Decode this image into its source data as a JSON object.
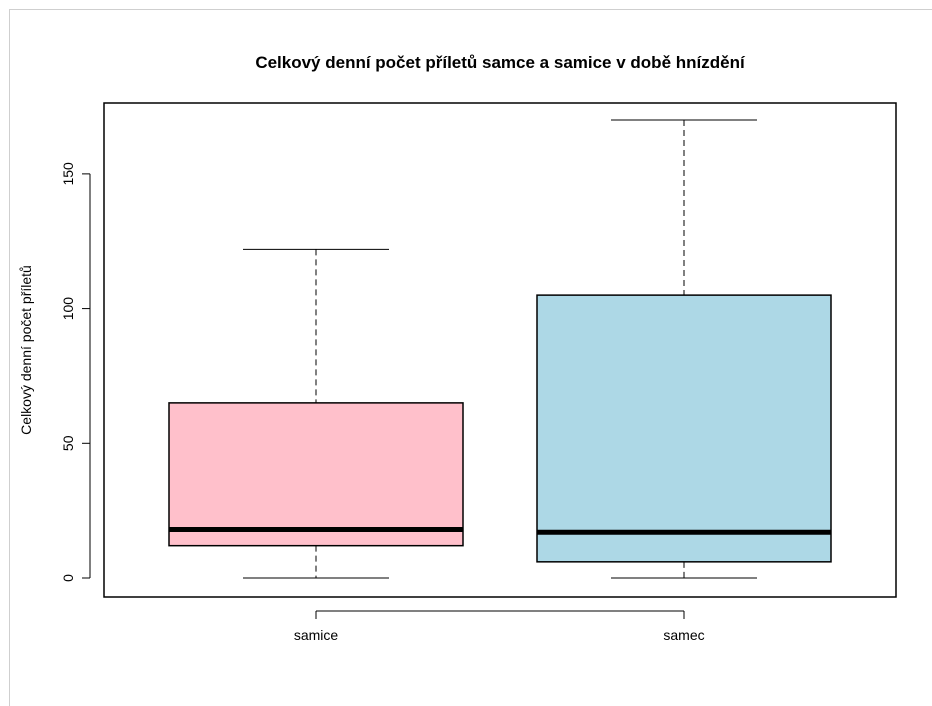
{
  "chart_data": {
    "type": "boxplot",
    "title": "Celkový denní počet příletů samce a samice v době hnízdění",
    "xlabel": "",
    "ylabel": "Celkový denní počet příletů",
    "ylim": [
      -8,
      177
    ],
    "yticks": [
      0,
      50,
      100,
      150
    ],
    "categories": [
      "samice",
      "samec"
    ],
    "boxes": [
      {
        "category": "samice",
        "min": 0,
        "q1": 12,
        "median": 18,
        "q3": 65,
        "max": 122,
        "color": "#ffc0cb"
      },
      {
        "category": "samec",
        "min": 0,
        "q1": 6,
        "median": 17,
        "q3": 105,
        "max": 170,
        "color": "#add8e6"
      }
    ]
  }
}
